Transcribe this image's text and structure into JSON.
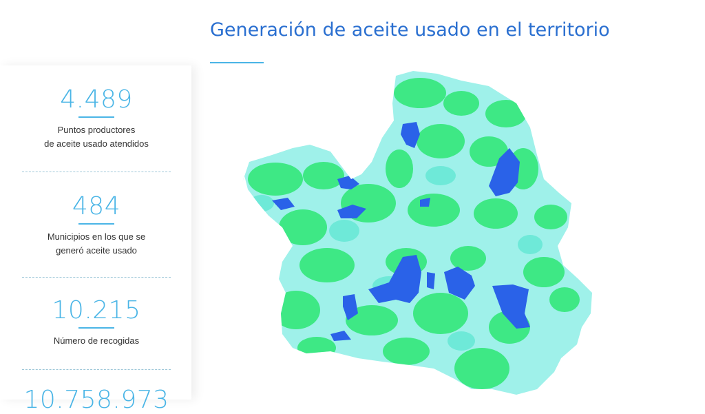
{
  "title": "Generación de aceite usado en el territorio",
  "stats": [
    {
      "value": "4.489",
      "line1": "Puntos productores",
      "line2": "de aceite usado atendidos"
    },
    {
      "value": "484",
      "line1": "Municipios en los que se",
      "line2": "generó aceite usado"
    },
    {
      "value": "10.215",
      "line1": "Número de recogidas",
      "line2": ""
    },
    {
      "value": "10.758.973",
      "line1": "",
      "line2": ""
    }
  ],
  "colors": {
    "accent": "#4ab5e6",
    "title": "#2a6fd0",
    "map_green": "#3ee885",
    "map_cyan": "#7ef0e6",
    "map_light": "#a4f2ee",
    "map_blue": "#2a62e8"
  }
}
